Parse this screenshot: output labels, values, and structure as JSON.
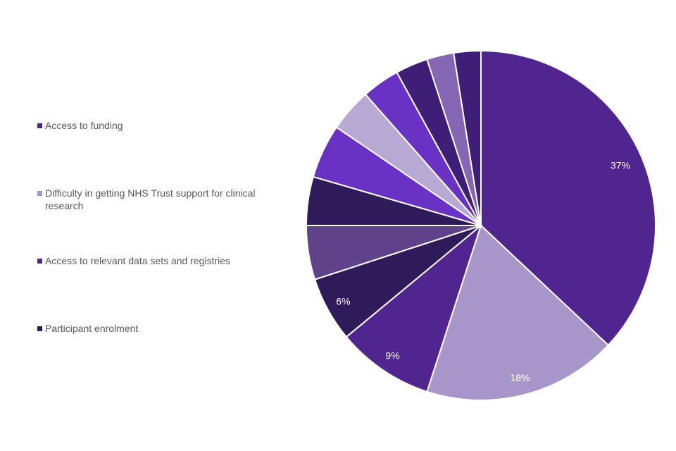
{
  "chart_data": {
    "type": "pie",
    "title": "",
    "legend_position": "left",
    "slices": [
      {
        "name": "Access to funding",
        "value": 37,
        "label": "37%",
        "color": "#51258f"
      },
      {
        "name": "Difficulty in getting NHS Trust support for clinical research",
        "value": 18,
        "label": "18%",
        "color": "#a895c9"
      },
      {
        "name": "Access to relevant data sets and registries",
        "value": 9,
        "label": "9%",
        "color": "#51258f"
      },
      {
        "name": "Participant enrolment",
        "value": 6,
        "label": "6%",
        "color": "#2f1a5a"
      },
      {
        "name": "",
        "value": 5,
        "label": "",
        "color": "#5f4289"
      },
      {
        "name": "",
        "value": 4.5,
        "label": "",
        "color": "#2f1a5a"
      },
      {
        "name": "",
        "value": 5,
        "label": "",
        "color": "#6a32c4"
      },
      {
        "name": "",
        "value": 4,
        "label": "",
        "color": "#b8a8d4"
      },
      {
        "name": "",
        "value": 3.5,
        "label": "",
        "color": "#6a32c4"
      },
      {
        "name": "",
        "value": 3,
        "label": "",
        "color": "#3f1e78"
      },
      {
        "name": "",
        "value": 2.5,
        "label": "",
        "color": "#8466b4"
      },
      {
        "name": "",
        "value": 2.5,
        "label": "",
        "color": "#3f1e78"
      }
    ],
    "legend": [
      {
        "label": "Access to funding",
        "color": "#51258f"
      },
      {
        "label": "Difficulty in getting NHS Trust support for clinical research",
        "color": "#a895c9"
      },
      {
        "label": "Access to relevant data sets and registries",
        "color": "#51258f"
      },
      {
        "label": "Participant enrolment",
        "color": "#2f1a5a"
      }
    ]
  }
}
